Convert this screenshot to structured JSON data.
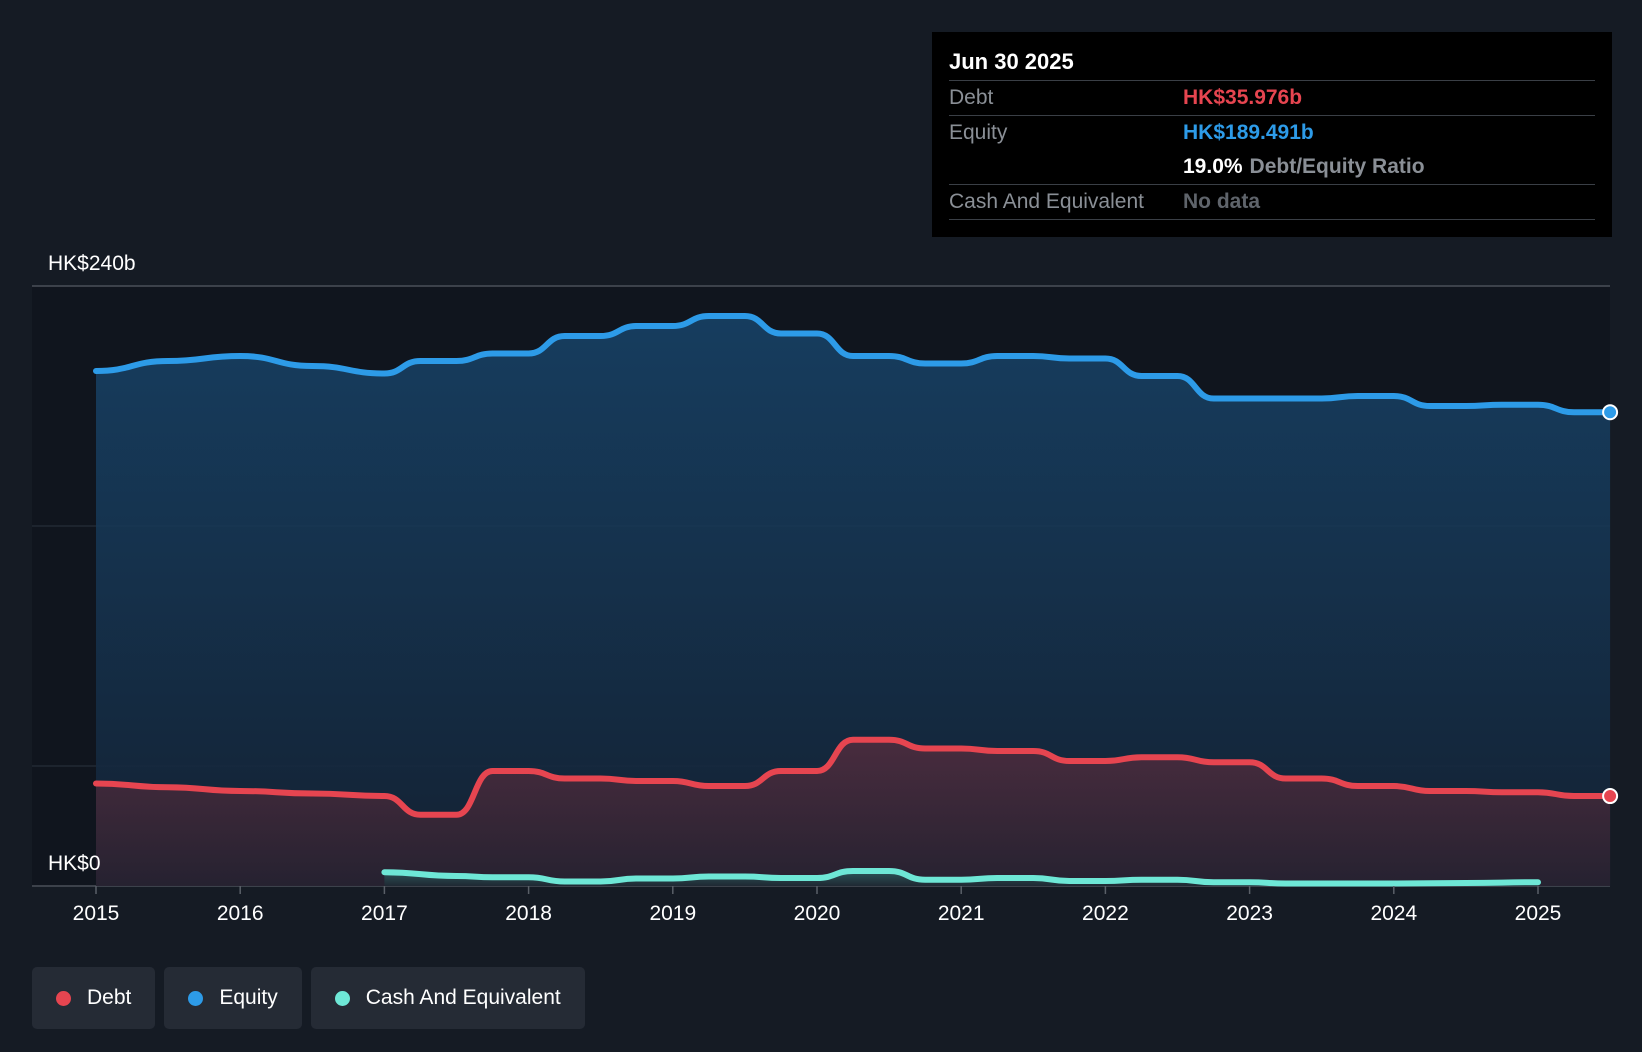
{
  "tooltip": {
    "date": "Jun 30 2025",
    "debt_label": "Debt",
    "debt_value": "HK$35.976b",
    "equity_label": "Equity",
    "equity_value": "HK$189.491b",
    "ratio_value": "19.0%",
    "ratio_label": "Debt/Equity Ratio",
    "cash_label": "Cash And Equivalent",
    "cash_value": "No data"
  },
  "legend": [
    {
      "label": "Debt",
      "color": "#e64550"
    },
    {
      "label": "Equity",
      "color": "#2d9be8"
    },
    {
      "label": "Cash And Equivalent",
      "color": "#6ee7d6"
    }
  ],
  "colors": {
    "debt": "#e64550",
    "equity": "#2d9be8",
    "cash": "#6ee7d6",
    "background": "#151b24"
  },
  "chart_data": {
    "type": "line",
    "y_top_label": "HK$240b",
    "y_bottom_label": "HK$0",
    "ylim": [
      0,
      240
    ],
    "y_unit": "HK$ billions",
    "xlim": [
      2015,
      2025.5
    ],
    "x_ticks": [
      "2015",
      "2016",
      "2017",
      "2018",
      "2019",
      "2020",
      "2021",
      "2022",
      "2023",
      "2024",
      "2025"
    ],
    "grid": true,
    "legend_position": "bottom-left",
    "series": [
      {
        "name": "Equity",
        "x": [
          2015.0,
          2015.5,
          2016.0,
          2016.5,
          2017.0,
          2017.25,
          2017.5,
          2017.75,
          2018.0,
          2018.25,
          2018.5,
          2018.75,
          2019.0,
          2019.25,
          2019.5,
          2019.75,
          2020.0,
          2020.25,
          2020.5,
          2020.75,
          2021.0,
          2021.25,
          2021.5,
          2021.75,
          2022.0,
          2022.25,
          2022.5,
          2022.75,
          2023.0,
          2023.25,
          2023.5,
          2023.75,
          2024.0,
          2024.25,
          2024.5,
          2024.75,
          2025.0,
          2025.25,
          2025.5
        ],
        "values": [
          206,
          210,
          212,
          208,
          205,
          210,
          210,
          213,
          213,
          220,
          220,
          224,
          224,
          228,
          228,
          221,
          221,
          212,
          212,
          209,
          209,
          212,
          212,
          211,
          211,
          204,
          204,
          195,
          195,
          195,
          195,
          196,
          196,
          192,
          192,
          192.5,
          192.5,
          189.5,
          189.491
        ]
      },
      {
        "name": "Debt",
        "x": [
          2015.0,
          2015.5,
          2016.0,
          2016.5,
          2017.0,
          2017.25,
          2017.5,
          2017.75,
          2018.0,
          2018.25,
          2018.5,
          2018.75,
          2019.0,
          2019.25,
          2019.5,
          2019.75,
          2020.0,
          2020.25,
          2020.5,
          2020.75,
          2021.0,
          2021.25,
          2021.5,
          2021.75,
          2022.0,
          2022.25,
          2022.5,
          2022.75,
          2023.0,
          2023.25,
          2023.5,
          2023.75,
          2024.0,
          2024.25,
          2024.5,
          2024.75,
          2025.0,
          2025.25,
          2025.5
        ],
        "values": [
          41,
          39.5,
          38,
          37,
          36,
          28.5,
          28.5,
          46,
          46,
          43,
          43,
          42,
          42,
          40,
          40,
          46,
          46,
          58.5,
          58.5,
          55,
          55,
          54,
          54,
          50,
          50,
          51.5,
          51.5,
          49.5,
          49.5,
          43,
          43,
          40,
          40,
          38,
          38,
          37.5,
          37.5,
          36,
          35.976
        ]
      },
      {
        "name": "Cash And Equivalent",
        "x": [
          2017.0,
          2017.5,
          2017.75,
          2018.0,
          2018.25,
          2018.5,
          2018.75,
          2019.0,
          2019.25,
          2019.5,
          2019.75,
          2020.0,
          2020.25,
          2020.5,
          2020.75,
          2021.0,
          2021.25,
          2021.5,
          2021.75,
          2022.0,
          2022.25,
          2022.5,
          2022.75,
          2023.0,
          2023.25,
          2023.5,
          2023.75,
          2024.0,
          2024.5,
          2025.0
        ],
        "values": [
          5.5,
          4,
          3.5,
          3.5,
          1.8,
          1.8,
          3,
          3,
          3.8,
          3.8,
          3.2,
          3.2,
          6,
          6,
          2.5,
          2.5,
          3.2,
          3.2,
          2,
          2,
          2.5,
          2.5,
          1.5,
          1.5,
          1,
          1,
          1,
          1,
          1.2,
          1.5
        ]
      }
    ]
  }
}
